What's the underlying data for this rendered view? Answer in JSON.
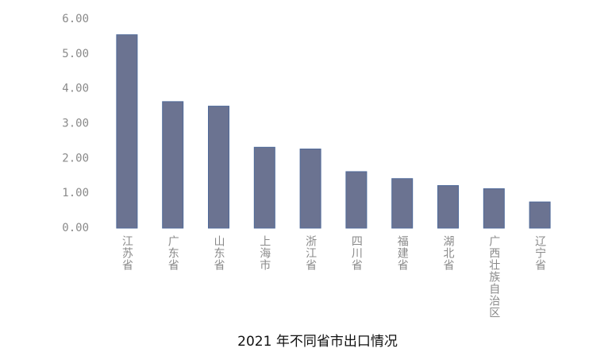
{
  "chart_data": {
    "type": "bar",
    "title": "2021 年不同省市出口情况",
    "categories": [
      "江苏省",
      "广东省",
      "山东省",
      "上海市",
      "浙江省",
      "四川省",
      "福建省",
      "湖北省",
      "广西壮族自治区",
      "辽宁省"
    ],
    "values": [
      5.55,
      3.63,
      3.5,
      2.32,
      2.27,
      1.62,
      1.42,
      1.22,
      1.13,
      0.75
    ],
    "color": "#6b7391",
    "ylim": [
      0,
      6
    ],
    "yticks": [
      {
        "value": 0,
        "label": "0.00"
      },
      {
        "value": 1,
        "label": "1.00"
      },
      {
        "value": 2,
        "label": "2.00"
      },
      {
        "value": 3,
        "label": "3.00"
      },
      {
        "value": 4,
        "label": "4.00"
      },
      {
        "value": 5,
        "label": "5.00"
      },
      {
        "value": 6,
        "label": "6.00"
      }
    ],
    "grid": false
  }
}
